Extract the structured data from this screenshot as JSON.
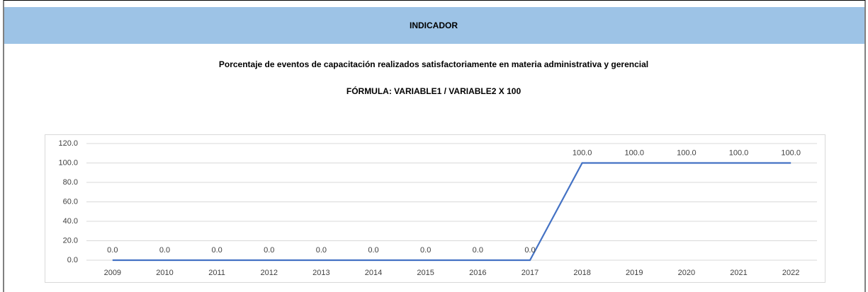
{
  "header": "INDICADOR",
  "title": "Porcentaje de eventos de capacitación realizados satisfactoriamente en materia administrativa y gerencial",
  "formula": "FÓRMULA: VARIABLE1 / VARIABLE2 X 100",
  "chart_data": {
    "type": "line",
    "categories": [
      "2009",
      "2010",
      "2011",
      "2012",
      "2013",
      "2014",
      "2015",
      "2016",
      "2017",
      "2018",
      "2019",
      "2020",
      "2021",
      "2022"
    ],
    "values": [
      0,
      0,
      0,
      0,
      0,
      0,
      0,
      0,
      0,
      100,
      100,
      100,
      100,
      100
    ],
    "value_labels": [
      "0.0",
      "0.0",
      "0.0",
      "0.0",
      "0.0",
      "0.0",
      "0.0",
      "0.0",
      "0.0",
      "100.0",
      "100.0",
      "100.0",
      "100.0",
      "100.0"
    ],
    "color": "#4472c4",
    "ylim": [
      0,
      120
    ],
    "yticks": [
      {
        "value": 0,
        "label": "0.0"
      },
      {
        "value": 20,
        "label": "20.0"
      },
      {
        "value": 40,
        "label": "40.0"
      },
      {
        "value": 60,
        "label": "60.0"
      },
      {
        "value": 80,
        "label": "80.0"
      },
      {
        "value": 100,
        "label": "100.0"
      },
      {
        "value": 120,
        "label": "120.0"
      }
    ],
    "grid": true
  }
}
